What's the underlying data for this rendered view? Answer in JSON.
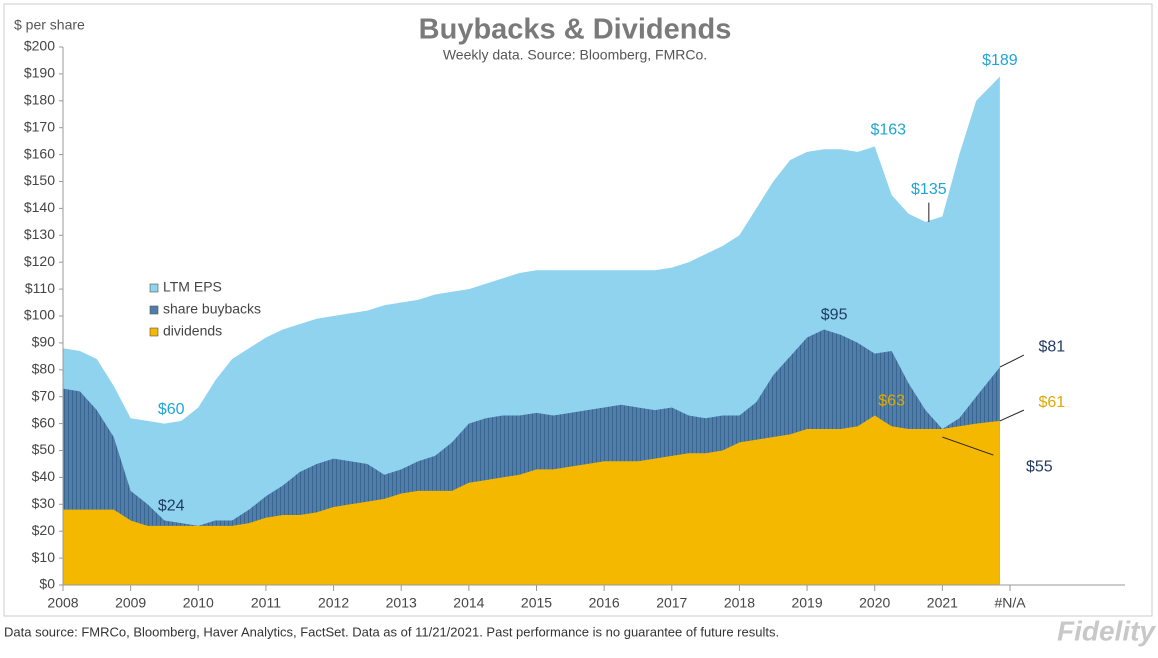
{
  "chart_data": {
    "type": "area",
    "title": "Buybacks & Dividends",
    "subtitle": "Weekly data.  Source: Bloomberg, FMRCo.",
    "y_label": "$ per share",
    "x": [
      2008,
      2008.25,
      2008.5,
      2008.75,
      2009,
      2009.25,
      2009.5,
      2009.75,
      2010,
      2010.25,
      2010.5,
      2010.75,
      2011,
      2011.25,
      2011.5,
      2011.75,
      2012,
      2012.25,
      2012.5,
      2012.75,
      2013,
      2013.25,
      2013.5,
      2013.75,
      2014,
      2014.25,
      2014.5,
      2014.75,
      2015,
      2015.25,
      2015.5,
      2015.75,
      2016,
      2016.25,
      2016.5,
      2016.75,
      2017,
      2017.25,
      2017.5,
      2017.75,
      2018,
      2018.25,
      2018.5,
      2018.75,
      2019,
      2019.25,
      2019.5,
      2019.75,
      2020,
      2020.25,
      2020.5,
      2020.75,
      2021,
      2021.25,
      2021.5,
      2021.85
    ],
    "series": [
      {
        "name": "LTM EPS",
        "color": "#8fd3ef",
        "values": [
          88,
          87,
          84,
          74,
          62,
          61,
          60,
          61,
          66,
          76,
          84,
          88,
          92,
          95,
          97,
          99,
          100,
          101,
          102,
          104,
          105,
          106,
          108,
          109,
          110,
          112,
          114,
          116,
          117,
          117,
          117,
          117,
          117,
          117,
          117,
          117,
          118,
          120,
          123,
          126,
          130,
          140,
          150,
          158,
          161,
          162,
          162,
          161,
          163,
          145,
          138,
          135,
          137,
          160,
          180,
          189
        ]
      },
      {
        "name": "share buybacks",
        "color": "#4f7eaa",
        "values": [
          73,
          72,
          65,
          55,
          35,
          30,
          24,
          23,
          22,
          24,
          24,
          28,
          33,
          37,
          42,
          45,
          47,
          46,
          45,
          41,
          43,
          46,
          48,
          53,
          60,
          62,
          63,
          63,
          64,
          63,
          64,
          65,
          66,
          67,
          66,
          65,
          66,
          63,
          62,
          63,
          63,
          68,
          78,
          85,
          92,
          95,
          93,
          90,
          86,
          87,
          75,
          65,
          58,
          62,
          70,
          81
        ]
      },
      {
        "name": "dividends",
        "color": "#f5b800",
        "values": [
          28,
          28,
          28,
          28,
          24,
          22,
          22,
          22,
          22,
          22,
          22,
          23,
          25,
          26,
          26,
          27,
          29,
          30,
          31,
          32,
          34,
          35,
          35,
          35,
          38,
          39,
          40,
          41,
          43,
          43,
          44,
          45,
          46,
          46,
          46,
          47,
          48,
          49,
          49,
          50,
          53,
          54,
          55,
          56,
          58,
          58,
          58,
          59,
          63,
          59,
          58,
          58,
          58,
          59,
          60,
          61
        ]
      }
    ],
    "annotations": [
      {
        "text": "$60",
        "x": 2009.6,
        "y": 60,
        "color": "#1fa5d6"
      },
      {
        "text": "$24",
        "x": 2009.6,
        "y": 24,
        "color": "#1f3a5f"
      },
      {
        "text": "$163",
        "x": 2020.2,
        "y": 163,
        "color": "#1fa5d6"
      },
      {
        "text": "$135",
        "x": 2020.8,
        "y": 135,
        "color": "#1fa5d6"
      },
      {
        "text": "$189",
        "x": 2021.85,
        "y": 189,
        "color": "#1fa5d6"
      },
      {
        "text": "$95",
        "x": 2019.4,
        "y": 95,
        "color": "#1f3a5f"
      },
      {
        "text": "$63",
        "x": 2020.25,
        "y": 63,
        "color": "#e0a800"
      },
      {
        "text": "$81",
        "x": 2021.85,
        "y": 81,
        "color": "#1f3a5f"
      },
      {
        "text": "$61",
        "x": 2021.85,
        "y": 61,
        "color": "#e0a800"
      },
      {
        "text": "$55",
        "x": 2021.0,
        "y": 55,
        "color": "#1f3a5f"
      }
    ],
    "xlim": [
      2008,
      2023.7
    ],
    "xticks": [
      2008,
      2009,
      2010,
      2011,
      2012,
      2013,
      2014,
      2015,
      2016,
      2017,
      2018,
      2019,
      2020,
      2021,
      {
        "value": 2022,
        "label": "#N/A"
      }
    ],
    "ylim": [
      0,
      200
    ],
    "yticks": [
      {
        "value": 0,
        "label": "$0"
      },
      {
        "value": 10,
        "label": "$10"
      },
      {
        "value": 20,
        "label": "$20"
      },
      {
        "value": 30,
        "label": "$30"
      },
      {
        "value": 40,
        "label": "$40"
      },
      {
        "value": 50,
        "label": "$50"
      },
      {
        "value": 60,
        "label": "$60"
      },
      {
        "value": 70,
        "label": "$70"
      },
      {
        "value": 80,
        "label": "$80"
      },
      {
        "value": 90,
        "label": "$90"
      },
      {
        "value": 100,
        "label": "$100"
      },
      {
        "value": 110,
        "label": "$110"
      },
      {
        "value": 120,
        "label": "$120"
      },
      {
        "value": 130,
        "label": "$130"
      },
      {
        "value": 140,
        "label": "$140"
      },
      {
        "value": 150,
        "label": "$150"
      },
      {
        "value": 160,
        "label": "$160"
      },
      {
        "value": 170,
        "label": "$170"
      },
      {
        "value": 180,
        "label": "$180"
      },
      {
        "value": 190,
        "label": "$190"
      },
      {
        "value": 200,
        "label": "$200"
      }
    ],
    "grid": false,
    "legend": "left"
  },
  "footer": "Data source: FMRCo, Bloomberg, Haver Analytics, FactSet. Data as of 11/21/2021. Past performance is no guarantee of future results.",
  "logo": "Fidelity"
}
